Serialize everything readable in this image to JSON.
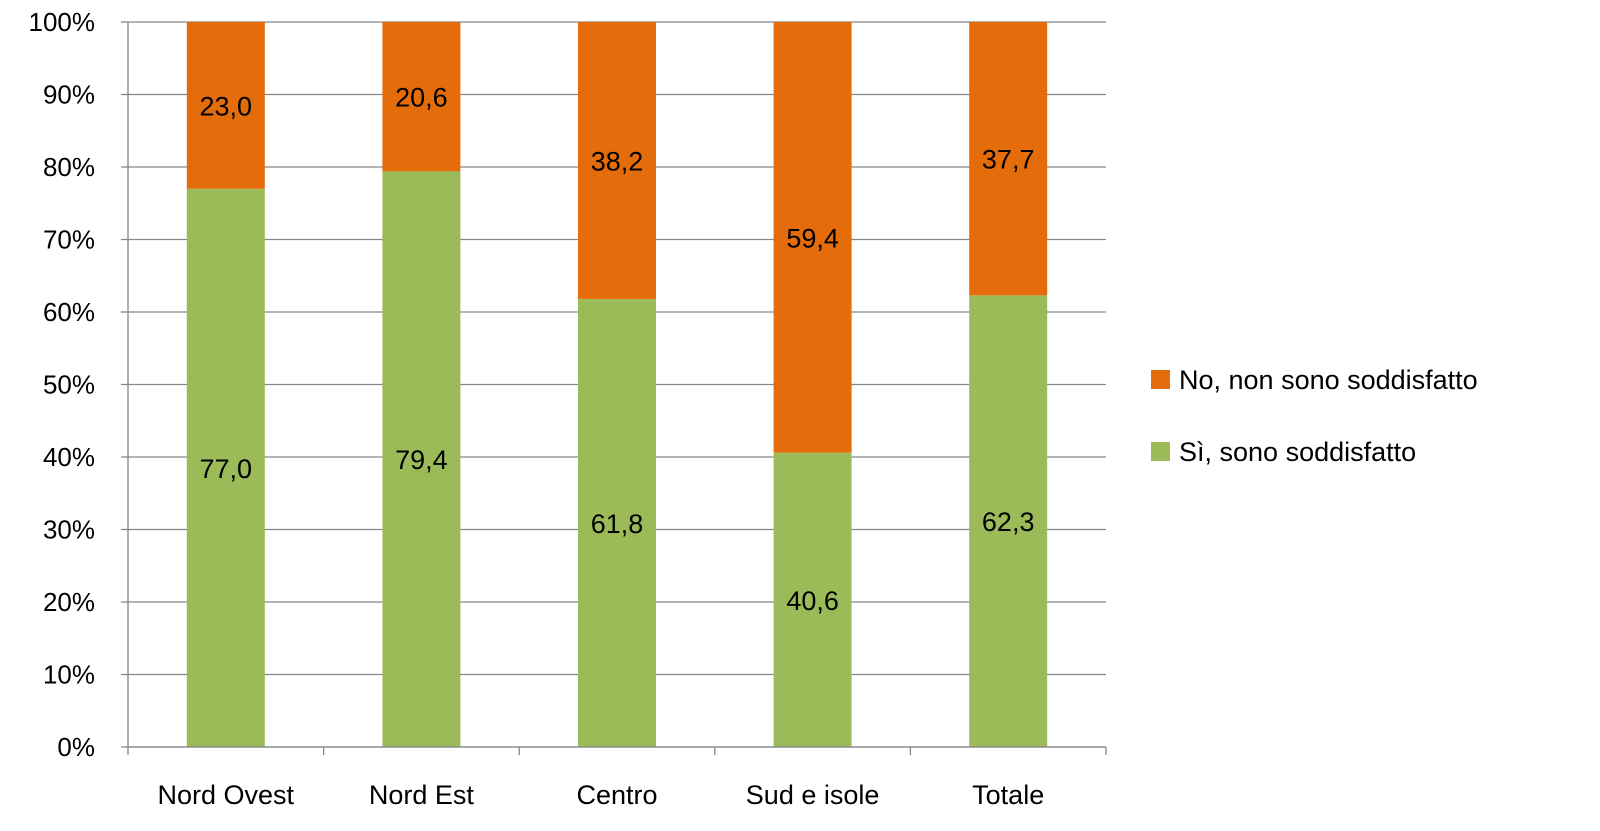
{
  "chart_data": {
    "type": "bar",
    "stacked": true,
    "percent_stacked": true,
    "categories": [
      "Nord Ovest",
      "Nord Est",
      "Centro",
      "Sud e isole",
      "Totale"
    ],
    "series": [
      {
        "name": "Sì, sono soddisfatto",
        "color": "#9BBB59",
        "values": [
          77.0,
          79.4,
          61.8,
          40.6,
          62.3
        ],
        "labels": [
          "77,0",
          "79,4",
          "61,8",
          "40,6",
          "62,3"
        ]
      },
      {
        "name": "No, non sono soddisfatto",
        "color": "#E46C0A",
        "values": [
          23.0,
          20.6,
          38.2,
          59.4,
          37.7
        ],
        "labels": [
          "23,0",
          "20,6",
          "38,2",
          "59,4",
          "37,7"
        ]
      }
    ],
    "y_ticks": [
      "0%",
      "10%",
      "20%",
      "30%",
      "40%",
      "50%",
      "60%",
      "70%",
      "80%",
      "90%",
      "100%"
    ],
    "ylim": [
      0,
      100
    ],
    "grid": true,
    "gridline_color": "#868686",
    "legend": {
      "position": "right",
      "order": [
        "No, non sono soddisfatto",
        "Sì, sono soddisfatto"
      ]
    },
    "title": "",
    "xlabel": "",
    "ylabel": ""
  }
}
